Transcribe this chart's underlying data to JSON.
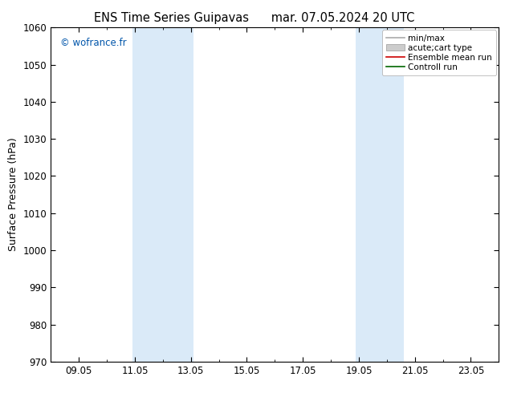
{
  "title_left": "ENS Time Series Guipavas",
  "title_right": "mar. 07.05.2024 20 UTC",
  "ylabel": "Surface Pressure (hPa)",
  "ylim": [
    970,
    1060
  ],
  "yticks": [
    970,
    980,
    990,
    1000,
    1010,
    1020,
    1030,
    1040,
    1050,
    1060
  ],
  "xtick_labels": [
    "09.05",
    "11.05",
    "13.05",
    "15.05",
    "17.05",
    "19.05",
    "21.05",
    "23.05"
  ],
  "xtick_positions": [
    2,
    4,
    6,
    8,
    10,
    12,
    14,
    16
  ],
  "xmin": 1,
  "xmax": 17,
  "bg_color": "#ffffff",
  "plot_bg_color": "#ffffff",
  "shaded_bands": [
    {
      "xmin": 3.9,
      "xmax": 6.1,
      "color": "#daeaf8"
    },
    {
      "xmin": 11.9,
      "xmax": 13.6,
      "color": "#daeaf8"
    }
  ],
  "watermark": "© wofrance.fr",
  "legend_entries": [
    {
      "label": "min/max",
      "color": "#aaaaaa",
      "type": "line"
    },
    {
      "label": "acute;cart type",
      "color": "#cccccc",
      "type": "box"
    },
    {
      "label": "Ensemble mean run",
      "color": "#cc0000",
      "type": "line"
    },
    {
      "label": "Controll run",
      "color": "#006600",
      "type": "line"
    }
  ],
  "title_fontsize": 10.5,
  "tick_fontsize": 8.5,
  "ylabel_fontsize": 9,
  "legend_fontsize": 7.5
}
